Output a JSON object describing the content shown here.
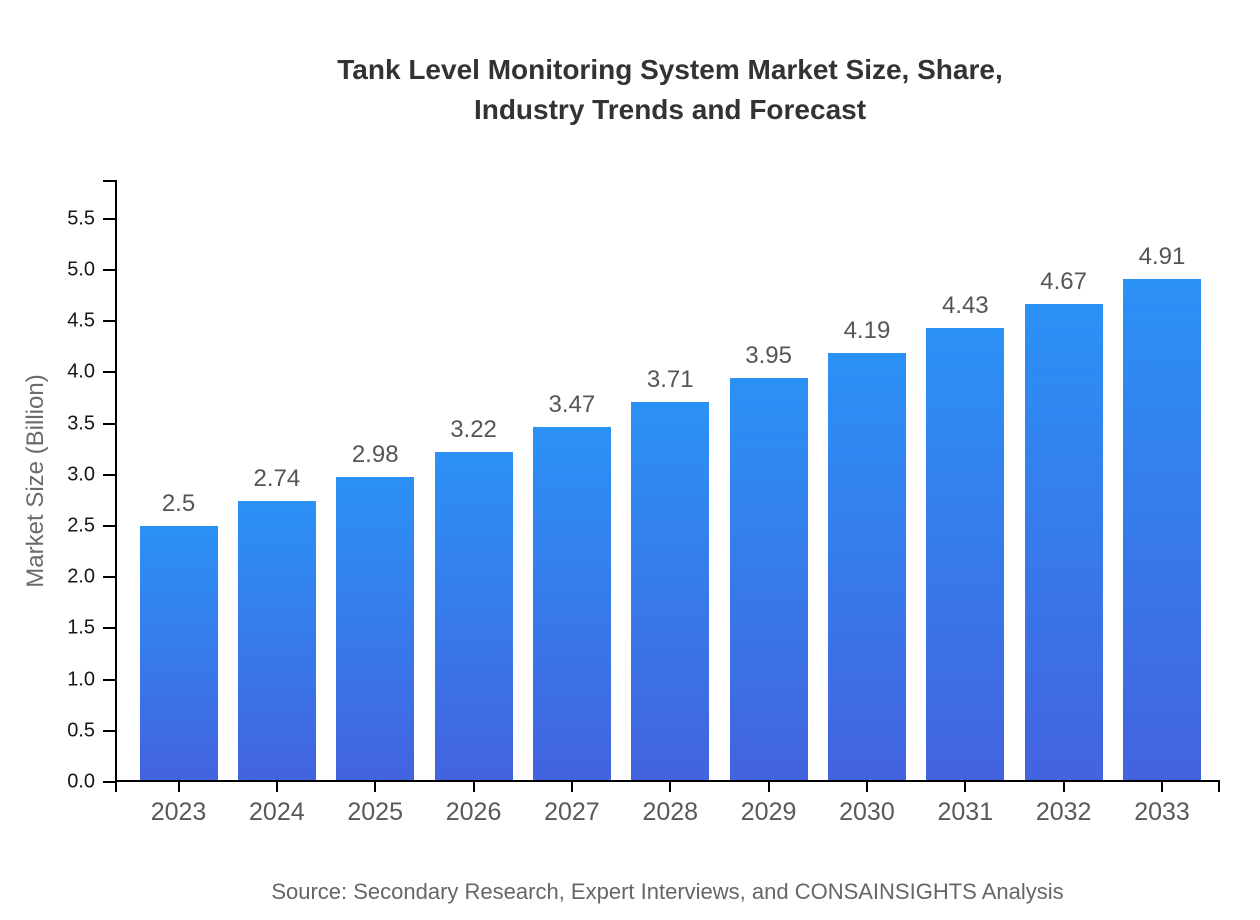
{
  "title_lines": [
    "Tank Level Monitoring System Market Size, Share,",
    "Industry Trends and Forecast"
  ],
  "source_note": "Source: Secondary Research, Expert Interviews, and CONSAINSIGHTS Analysis",
  "colors": {
    "background": "#ffffff",
    "bar_gradient_top": "#2b91f5",
    "bar_gradient_bottom": "#4363de",
    "axis": "#000000",
    "title_text": "#333333",
    "ytick_text": "#161616",
    "xtick_text": "#595959",
    "value_label_text": "#555555",
    "axis_title_text": "#6b6b6b",
    "source_text": "#666666"
  },
  "chart_data": {
    "type": "bar",
    "title": "Tank Level Monitoring System Market Size, Share, Industry Trends and Forecast",
    "categories": [
      "2023",
      "2024",
      "2025",
      "2026",
      "2027",
      "2028",
      "2029",
      "2030",
      "2031",
      "2032",
      "2033"
    ],
    "values": [
      2.5,
      2.74,
      2.98,
      3.22,
      3.47,
      3.71,
      3.95,
      4.19,
      4.43,
      4.67,
      4.91
    ],
    "xlabel": "",
    "ylabel": "Market Size (Billion)",
    "ylim": [
      0,
      5.88
    ],
    "yticks": [
      0.0,
      0.5,
      1.0,
      1.5,
      2.0,
      2.5,
      3.0,
      3.5,
      4.0,
      4.5,
      5.0,
      5.5
    ],
    "grid": false,
    "legend": false,
    "data_labels": true,
    "source": "Source: Secondary Research, Expert Interviews, and CONSAINSIGHTS Analysis"
  }
}
